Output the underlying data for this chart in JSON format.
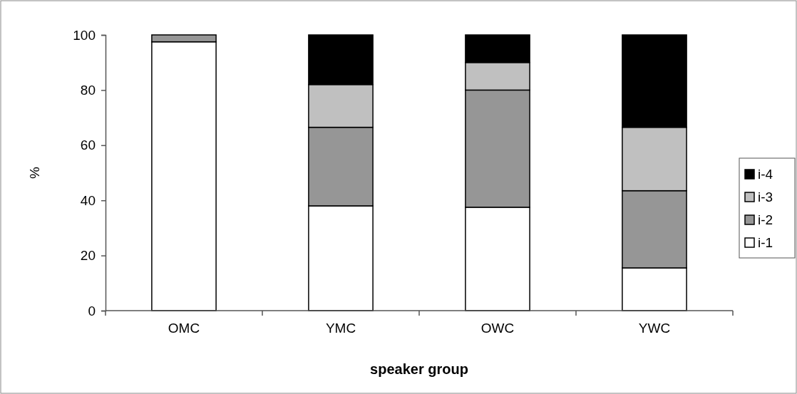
{
  "chart_data": {
    "type": "bar",
    "stacked": true,
    "xlabel": "speaker group",
    "ylabel": "%",
    "categories": [
      "OMC",
      "YMC",
      "OWC",
      "YWC"
    ],
    "series": [
      {
        "name": "i-1",
        "color": "#ffffff",
        "values": [
          97.5,
          38,
          37.5,
          15.5
        ]
      },
      {
        "name": "i-2",
        "color": "#969696",
        "values": [
          2.5,
          28.5,
          42.5,
          28
        ]
      },
      {
        "name": "i-3",
        "color": "#c0c0c0",
        "values": [
          0,
          15.5,
          10,
          23
        ]
      },
      {
        "name": "i-4",
        "color": "#000000",
        "values": [
          0,
          18,
          10,
          33.5
        ]
      }
    ],
    "ylim": [
      0,
      100
    ],
    "yticks": [
      0,
      20,
      40,
      60,
      80,
      100
    ],
    "legend": "right"
  }
}
